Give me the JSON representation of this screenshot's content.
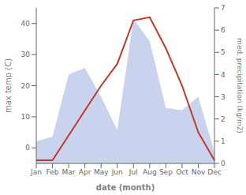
{
  "chart_data": {
    "type": "line",
    "categories": [
      "Jan",
      "Feb",
      "Mar",
      "Apr",
      "May",
      "Jun",
      "Jul",
      "Aug",
      "Sep",
      "Oct",
      "Nov",
      "Dec"
    ],
    "xlabel": "date (month)",
    "ylabel": "max temp (C)",
    "y2label": "med. precipitation (kg/m2)",
    "ylim": [
      -5,
      45
    ],
    "yticks": [
      0,
      10,
      20,
      30,
      40
    ],
    "y2lim": [
      0,
      7
    ],
    "y2ticks": [
      0,
      1,
      2,
      3,
      4,
      5,
      6,
      7
    ],
    "grid": false,
    "series": [
      {
        "type": "area",
        "axis": "y2",
        "color": "#b8c4e8",
        "values": [
          1.0,
          1.2,
          4.0,
          4.3,
          3.0,
          1.5,
          6.5,
          5.5,
          2.5,
          2.4,
          3.0,
          0.5
        ]
      },
      {
        "type": "line",
        "color": "#c0392b",
        "values": [
          -4,
          -4,
          4,
          12,
          20,
          27,
          41,
          42,
          32,
          20,
          5,
          -4
        ]
      }
    ]
  }
}
